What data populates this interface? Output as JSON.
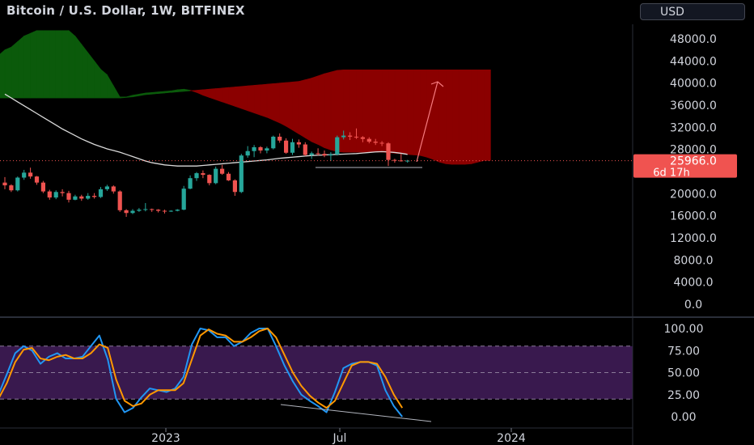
{
  "header": {
    "title": "Bitcoin / U.S. Dollar, 1W, BITFINEX",
    "currency_button": "USD"
  },
  "chart_data": [
    {
      "type": "candlestick",
      "title": "Bitcoin / U.S. Dollar, 1W, BITFINEX",
      "ylim": [
        0,
        50000
      ],
      "y_ticks": [
        "48000.0",
        "44000.0",
        "40000.0",
        "36000.0",
        "32000.0",
        "28000.0",
        "24000.0",
        "20000.0",
        "16000.0",
        "12000.0",
        "8000.0",
        "4000.0",
        "0.0"
      ],
      "x_ticks": [
        "2023",
        "Jul",
        "2024"
      ],
      "last_price": {
        "value": 25966.0,
        "label": "25966.0",
        "countdown": "6d 17h"
      },
      "grid": false,
      "colors": {
        "up": "#26a69a",
        "down": "#ef5350",
        "cloud_bull": "#0b5a0b",
        "cloud_bear": "#8b0000",
        "ma": "#d9d9d9"
      },
      "candles": [
        [
          22000,
          23000,
          20800,
          21500
        ],
        [
          21500,
          21700,
          20300,
          20600
        ],
        [
          20600,
          23100,
          20400,
          22900
        ],
        [
          22900,
          24300,
          22500,
          23800
        ],
        [
          23800,
          24700,
          22700,
          23100
        ],
        [
          23100,
          23200,
          21600,
          22000
        ],
        [
          22000,
          22300,
          20100,
          20400
        ],
        [
          20400,
          20700,
          18900,
          19300
        ],
        [
          19300,
          20600,
          19000,
          20300
        ],
        [
          20300,
          20800,
          19500,
          20100
        ],
        [
          20100,
          20500,
          18400,
          18900
        ],
        [
          18900,
          19800,
          18800,
          19500
        ],
        [
          19500,
          19800,
          18700,
          19100
        ],
        [
          19100,
          20100,
          18900,
          19600
        ],
        [
          19600,
          20100,
          19100,
          19400
        ],
        [
          19400,
          21200,
          19200,
          20800
        ],
        [
          20800,
          21600,
          20500,
          21300
        ],
        [
          21300,
          21500,
          20000,
          20400
        ],
        [
          20400,
          20600,
          16700,
          17000
        ],
        [
          17000,
          17200,
          15800,
          16500
        ],
        [
          16500,
          17200,
          16300,
          16900
        ],
        [
          16900,
          17400,
          16700,
          17100
        ],
        [
          17100,
          18300,
          16800,
          17200
        ],
        [
          17200,
          17300,
          16700,
          17100
        ],
        [
          17100,
          17200,
          16600,
          16900
        ],
        [
          16900,
          17100,
          16400,
          16800
        ],
        [
          16800,
          17000,
          16700,
          16900
        ],
        [
          16900,
          17200,
          16800,
          17100
        ],
        [
          17100,
          21400,
          17000,
          20900
        ],
        [
          20900,
          23300,
          20800,
          22800
        ],
        [
          22800,
          23900,
          22300,
          23700
        ],
        [
          23700,
          24200,
          22800,
          23400
        ],
        [
          23400,
          23500,
          21500,
          21900
        ],
        [
          21900,
          24900,
          21700,
          24500
        ],
        [
          24500,
          25200,
          23400,
          23600
        ],
        [
          23600,
          23900,
          22300,
          22400
        ],
        [
          22400,
          22600,
          19600,
          20300
        ],
        [
          20300,
          27200,
          20100,
          26900
        ],
        [
          26900,
          28600,
          26500,
          27700
        ],
        [
          27700,
          28800,
          26600,
          28400
        ],
        [
          28400,
          28600,
          27300,
          27800
        ],
        [
          27800,
          28500,
          27300,
          28200
        ],
        [
          28200,
          30500,
          28000,
          30300
        ],
        [
          30300,
          30900,
          29200,
          29600
        ],
        [
          29600,
          30000,
          27200,
          27400
        ],
        [
          27400,
          29900,
          27000,
          29300
        ],
        [
          29300,
          29800,
          28300,
          28900
        ],
        [
          28900,
          29300,
          26800,
          27000
        ],
        [
          27000,
          27600,
          26300,
          27300
        ],
        [
          27300,
          28200,
          26900,
          27200
        ],
        [
          27200,
          27800,
          26600,
          26900
        ],
        [
          26900,
          27500,
          25900,
          27100
        ],
        [
          27100,
          30500,
          26900,
          30200
        ],
        [
          30200,
          31400,
          29800,
          30500
        ],
        [
          30500,
          31100,
          29700,
          30300
        ],
        [
          30300,
          31800,
          29900,
          30200
        ],
        [
          30200,
          30400,
          29300,
          29900
        ],
        [
          29900,
          30200,
          29100,
          29400
        ],
        [
          29400,
          29900,
          28800,
          29200
        ],
        [
          29200,
          29500,
          28600,
          29100
        ],
        [
          29100,
          29300,
          25000,
          26100
        ],
        [
          26100,
          26300,
          25600,
          26000
        ],
        [
          26000,
          27200,
          25800,
          25900
        ],
        [
          25900,
          26100,
          25600,
          25966
        ]
      ],
      "ichimoku": {
        "start_index": -2,
        "span_a": [
          45000,
          45000,
          46000,
          46500,
          47500,
          48500,
          49000,
          49500,
          49500,
          49500,
          49500,
          49500,
          49500,
          48500,
          47000,
          45500,
          44000,
          42500,
          41500,
          39500,
          37500,
          37500,
          37800,
          38000,
          38200,
          38300,
          38400,
          38500,
          38600,
          38800,
          38900,
          38700,
          38300,
          37800,
          37400,
          37000,
          36600,
          36200,
          35800,
          35400,
          35000,
          34600,
          34200,
          33800,
          33300,
          32800,
          32200,
          31500,
          30800,
          30100,
          29400,
          28900,
          28300,
          27900,
          27600,
          27500,
          27500,
          27500,
          27500,
          27500,
          27500,
          27500,
          27400,
          27300,
          27200,
          27100,
          27000,
          26900,
          26600,
          26200,
          25700,
          25400,
          25300,
          25300,
          25300,
          25400,
          25700,
          26000,
          26000
        ],
        "span_b": [
          37300,
          37300,
          37300,
          37300,
          37300,
          37300,
          37300,
          37300,
          37300,
          37300,
          37300,
          37300,
          37300,
          37300,
          37300,
          37300,
          37300,
          37300,
          37300,
          37300,
          37300,
          37400,
          37500,
          37700,
          37900,
          38000,
          38100,
          38200,
          38300,
          38400,
          38500,
          38600,
          38700,
          38800,
          38900,
          39000,
          39100,
          39200,
          39300,
          39400,
          39500,
          39600,
          39700,
          39800,
          39900,
          40000,
          40100,
          40200,
          40300,
          40600,
          40900,
          41300,
          41700,
          42000,
          42300,
          42400,
          42400,
          42400,
          42400,
          42400,
          42400,
          42400,
          42400,
          42400,
          42400,
          42400,
          42400,
          42400,
          42400,
          42400,
          42400,
          42400,
          42400,
          42400,
          42400,
          42400,
          42400,
          42400,
          42400
        ]
      },
      "moving_average": [
        38000,
        37300,
        36600,
        35900,
        35200,
        34500,
        33800,
        33100,
        32400,
        31700,
        31100,
        30500,
        29900,
        29400,
        28900,
        28500,
        28100,
        27800,
        27500,
        27100,
        26700,
        26300,
        25900,
        25600,
        25400,
        25200,
        25100,
        25000,
        25000,
        25000,
        25000,
        25100,
        25200,
        25300,
        25400,
        25500,
        25600,
        25700,
        25800,
        25900,
        26000,
        26100,
        26250,
        26400,
        26500,
        26600,
        26700,
        26800,
        26900,
        26950,
        27000,
        27050,
        27100,
        27150,
        27200,
        27250,
        27350,
        27450,
        27550,
        27600,
        27550,
        27450,
        27300,
        27100
      ]
    },
    {
      "type": "line",
      "title": "",
      "ylim": [
        0,
        100
      ],
      "y_ticks": [
        "100.00",
        "75.00",
        "50.00",
        "25.00",
        "0.00"
      ],
      "bands": [
        20,
        50,
        80
      ],
      "series": [
        {
          "values": [
            25,
            48,
            72,
            80,
            75,
            60,
            68,
            72,
            66,
            66,
            68,
            80,
            92,
            65,
            20,
            5,
            10,
            22,
            32,
            30,
            28,
            32,
            45,
            82,
            100,
            98,
            90,
            90,
            80,
            85,
            95,
            100,
            100,
            80,
            58,
            40,
            25,
            18,
            12,
            5,
            28,
            55,
            60,
            62,
            62,
            58,
            30,
            12,
            0
          ],
          "color": "#2196f3"
        },
        {
          "values": [
            20,
            38,
            62,
            76,
            78,
            66,
            64,
            68,
            70,
            66,
            66,
            72,
            82,
            78,
            42,
            18,
            12,
            15,
            25,
            30,
            30,
            30,
            38,
            65,
            92,
            99,
            94,
            92,
            85,
            85,
            90,
            97,
            100,
            90,
            70,
            50,
            35,
            24,
            16,
            10,
            18,
            38,
            58,
            62,
            62,
            60,
            45,
            25,
            10
          ],
          "color": "#ff9800"
        }
      ]
    }
  ]
}
